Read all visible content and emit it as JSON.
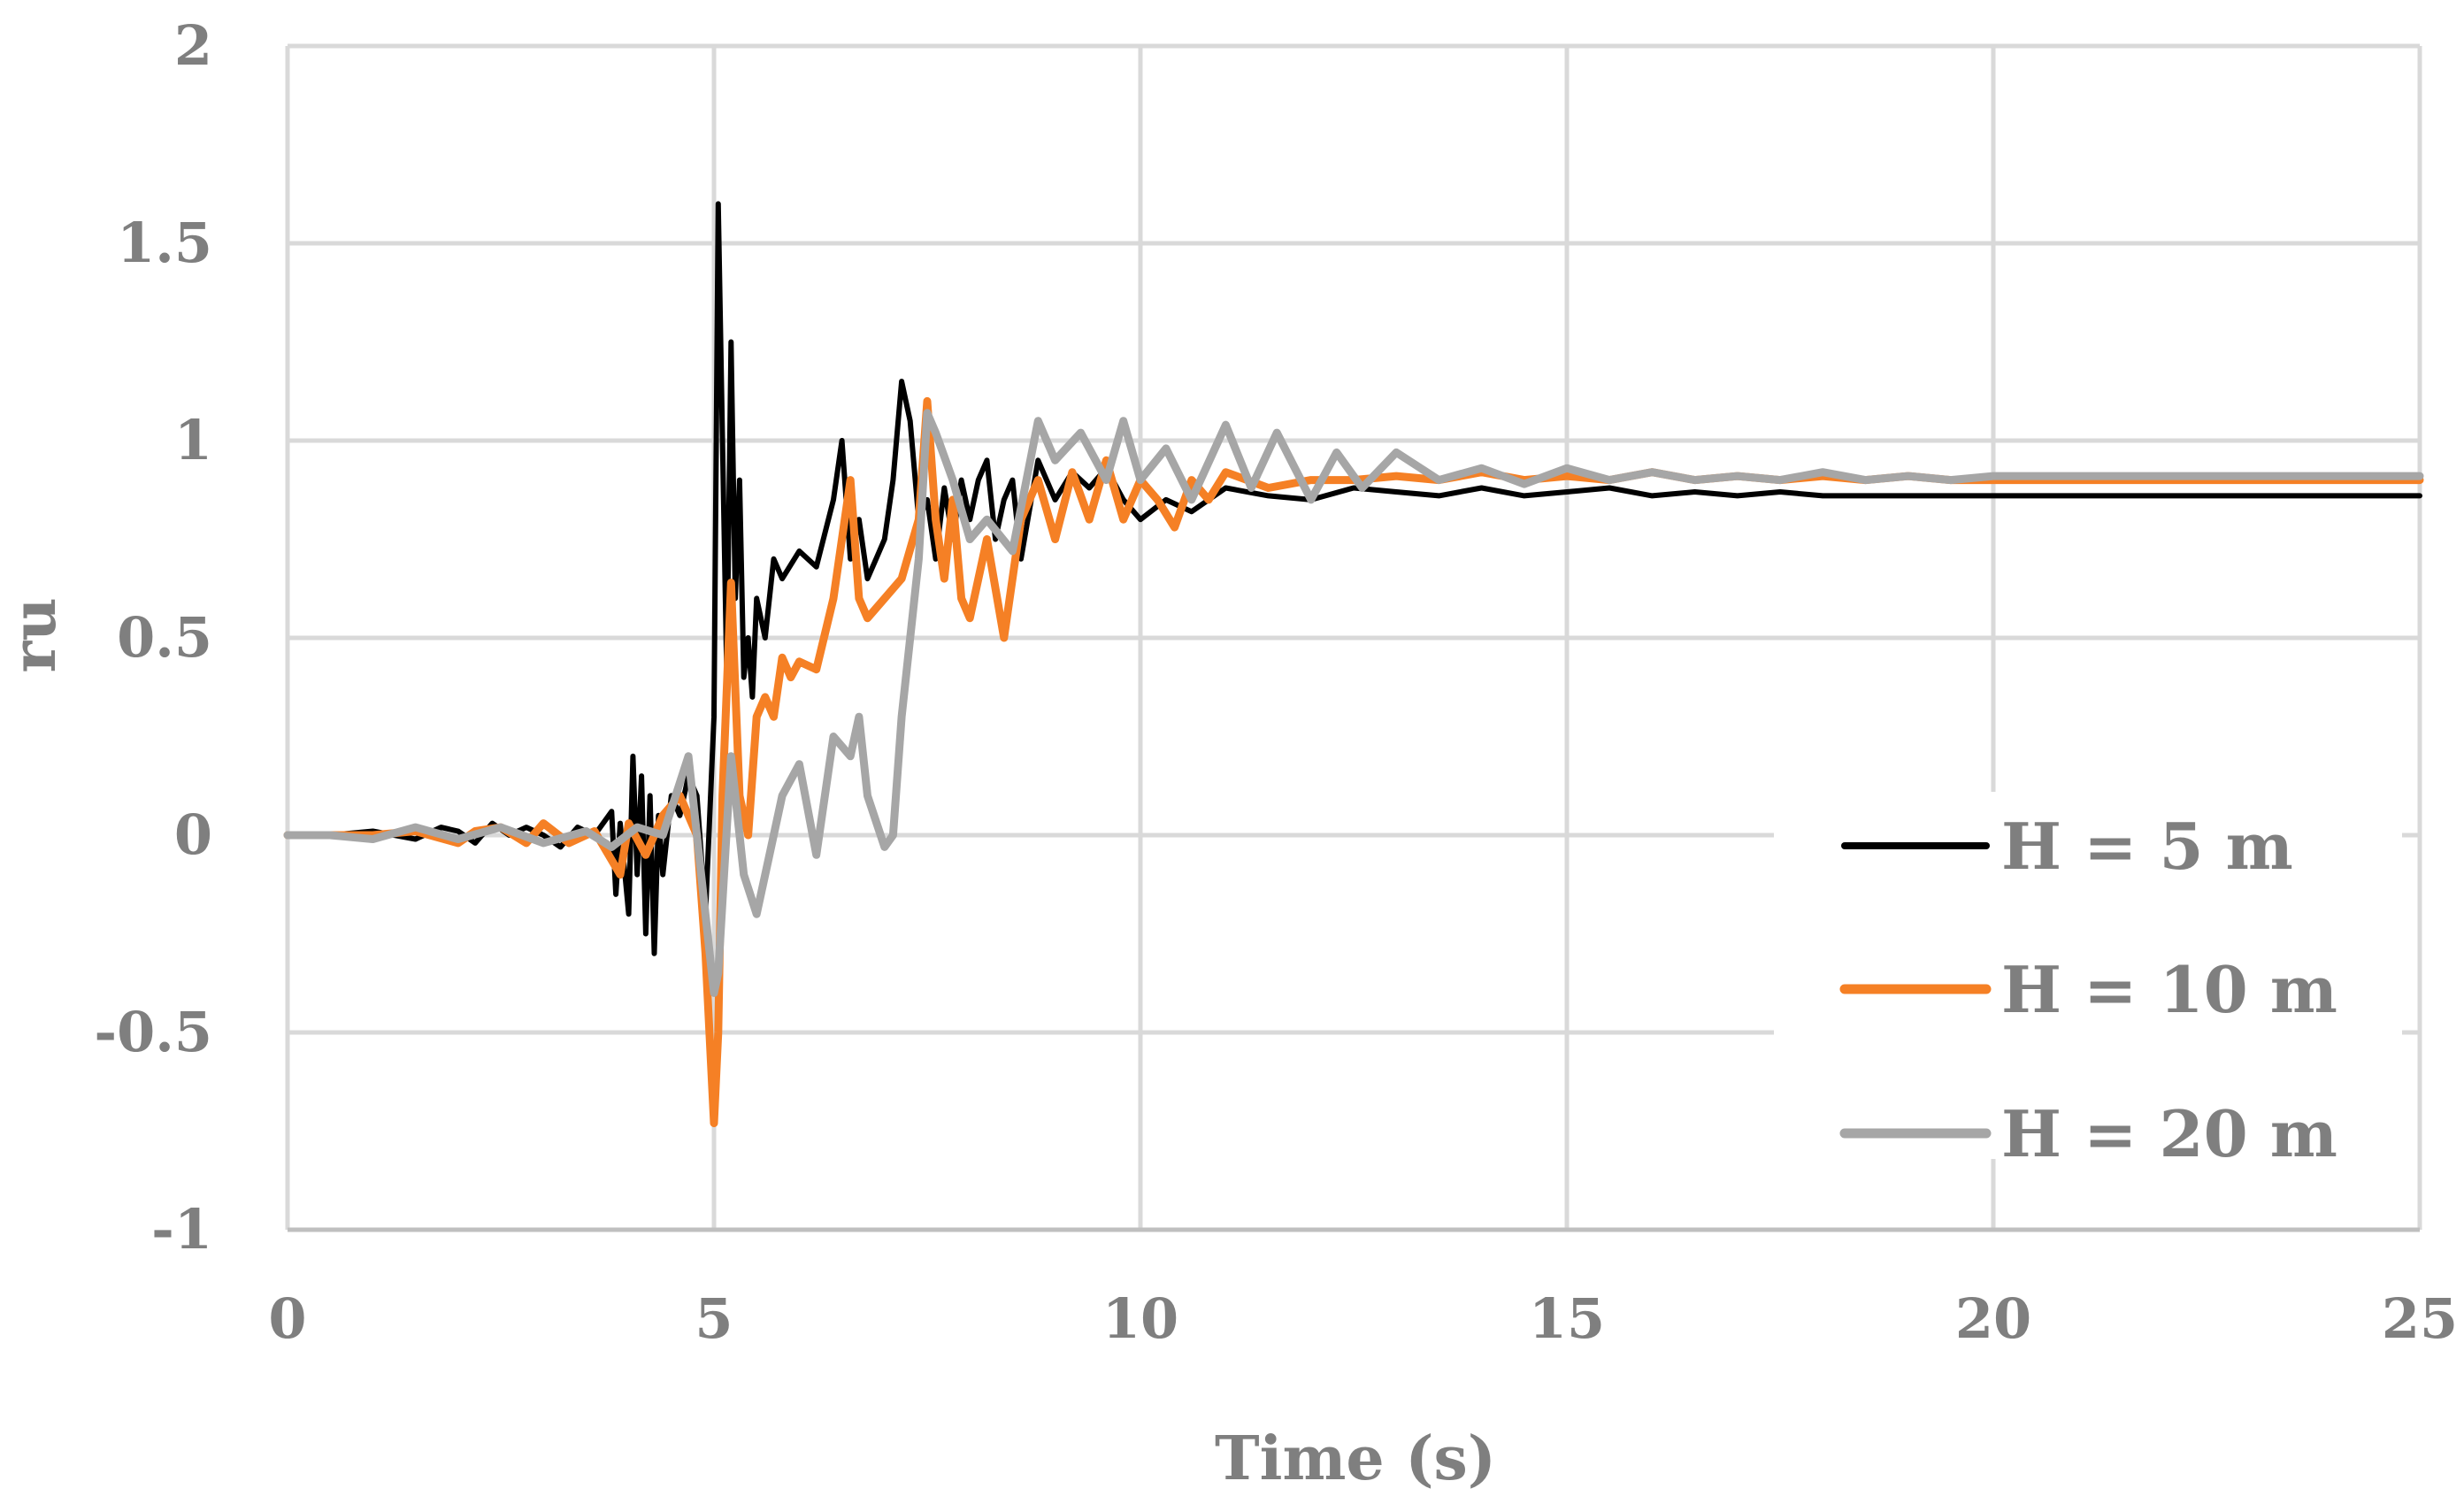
{
  "chart_data": {
    "type": "line",
    "title": "",
    "xlabel": "Time (s)",
    "ylabel": "ru",
    "xlim": [
      0,
      25
    ],
    "ylim": [
      -1,
      2
    ],
    "xticks": [
      0,
      5,
      10,
      15,
      20,
      25
    ],
    "yticks": [
      -1,
      -0.5,
      0,
      0.5,
      1,
      1.5,
      2
    ],
    "xtick_labels": [
      "0",
      "5",
      "10",
      "15",
      "20",
      "25"
    ],
    "ytick_labels": [
      "-1",
      "-0.5",
      "0",
      "0.5",
      "1",
      "1.5",
      "2"
    ],
    "grid": true,
    "legend": "bottom-right",
    "series": [
      {
        "name": "H = 5 m",
        "color": "#000000",
        "x": [
          0,
          0.5,
          1,
          1.5,
          1.8,
          2.0,
          2.2,
          2.4,
          2.6,
          2.8,
          3.0,
          3.2,
          3.4,
          3.6,
          3.8,
          3.85,
          3.9,
          4.0,
          4.05,
          4.1,
          4.15,
          4.2,
          4.25,
          4.3,
          4.35,
          4.4,
          4.5,
          4.6,
          4.7,
          4.8,
          4.9,
          5.0,
          5.05,
          5.1,
          5.15,
          5.2,
          5.25,
          5.3,
          5.35,
          5.4,
          5.45,
          5.5,
          5.6,
          5.7,
          5.8,
          6.0,
          6.2,
          6.4,
          6.5,
          6.6,
          6.7,
          6.8,
          6.9,
          7.0,
          7.1,
          7.2,
          7.3,
          7.4,
          7.5,
          7.6,
          7.7,
          7.8,
          7.9,
          8.0,
          8.1,
          8.2,
          8.3,
          8.4,
          8.5,
          8.6,
          8.8,
          9.0,
          9.2,
          9.4,
          9.6,
          9.8,
          10.0,
          10.3,
          10.6,
          11.0,
          11.5,
          12.0,
          12.5,
          13.0,
          13.5,
          14.0,
          14.5,
          15.0,
          15.5,
          16.0,
          16.5,
          17.0,
          17.5,
          18.0,
          18.5,
          19.0,
          19.5,
          20.0,
          22.0,
          25.0
        ],
        "y": [
          0,
          0,
          0.01,
          -0.01,
          0.02,
          0.01,
          -0.02,
          0.03,
          0.0,
          0.02,
          0.0,
          -0.03,
          0.02,
          0.0,
          0.06,
          -0.15,
          0.03,
          -0.2,
          0.2,
          -0.1,
          0.15,
          -0.25,
          0.1,
          -0.3,
          0.05,
          -0.1,
          0.1,
          0.05,
          0.15,
          0.1,
          -0.2,
          0.3,
          1.6,
          1.0,
          0.4,
          1.25,
          0.6,
          0.9,
          0.4,
          0.5,
          0.35,
          0.6,
          0.5,
          0.7,
          0.65,
          0.72,
          0.68,
          0.85,
          1.0,
          0.7,
          0.8,
          0.65,
          0.7,
          0.75,
          0.9,
          1.15,
          1.05,
          0.8,
          0.85,
          0.7,
          0.88,
          0.75,
          0.9,
          0.8,
          0.9,
          0.95,
          0.75,
          0.85,
          0.9,
          0.7,
          0.95,
          0.85,
          0.92,
          0.88,
          0.93,
          0.85,
          0.8,
          0.85,
          0.82,
          0.88,
          0.86,
          0.85,
          0.88,
          0.87,
          0.86,
          0.88,
          0.86,
          0.87,
          0.88,
          0.86,
          0.87,
          0.86,
          0.87,
          0.86,
          0.86,
          0.86,
          0.86,
          0.86,
          0.86,
          0.86
        ]
      },
      {
        "name": "H = 10 m",
        "color": "#f58025",
        "x": [
          0,
          0.5,
          1,
          1.5,
          2.0,
          2.2,
          2.5,
          2.8,
          3.0,
          3.3,
          3.6,
          3.9,
          4.0,
          4.2,
          4.4,
          4.6,
          4.8,
          4.9,
          5.0,
          5.05,
          5.1,
          5.2,
          5.3,
          5.4,
          5.5,
          5.6,
          5.7,
          5.8,
          5.9,
          6.0,
          6.2,
          6.4,
          6.6,
          6.7,
          6.8,
          7.0,
          7.2,
          7.4,
          7.5,
          7.6,
          7.7,
          7.8,
          7.9,
          8.0,
          8.2,
          8.4,
          8.6,
          8.8,
          9.0,
          9.2,
          9.4,
          9.6,
          9.8,
          10.0,
          10.2,
          10.4,
          10.6,
          10.8,
          11.0,
          11.5,
          12.0,
          12.5,
          13.0,
          13.5,
          14.0,
          14.5,
          15.0,
          15.5,
          16.0,
          16.5,
          17.0,
          17.5,
          18.0,
          18.5,
          19.0,
          19.5,
          20.0,
          22.0,
          25.0
        ],
        "y": [
          0,
          0,
          0,
          0.01,
          -0.02,
          0.01,
          0.02,
          -0.02,
          0.03,
          -0.02,
          0.01,
          -0.1,
          0.03,
          -0.05,
          0.05,
          0.1,
          0.0,
          -0.3,
          -0.73,
          -0.5,
          0.1,
          0.64,
          0.1,
          0.0,
          0.3,
          0.35,
          0.3,
          0.45,
          0.4,
          0.44,
          0.42,
          0.6,
          0.9,
          0.6,
          0.55,
          0.6,
          0.65,
          0.8,
          1.1,
          0.8,
          0.65,
          0.85,
          0.6,
          0.55,
          0.75,
          0.5,
          0.8,
          0.9,
          0.75,
          0.92,
          0.8,
          0.95,
          0.8,
          0.9,
          0.85,
          0.78,
          0.9,
          0.85,
          0.92,
          0.88,
          0.9,
          0.9,
          0.91,
          0.9,
          0.92,
          0.9,
          0.91,
          0.9,
          0.92,
          0.9,
          0.91,
          0.9,
          0.91,
          0.9,
          0.91,
          0.9,
          0.9,
          0.9,
          0.9
        ]
      },
      {
        "name": "H = 20 m",
        "color": "#a6a6a6",
        "x": [
          0,
          0.5,
          1,
          1.5,
          2.0,
          2.5,
          3.0,
          3.5,
          3.8,
          4.1,
          4.4,
          4.7,
          4.85,
          5.0,
          5.05,
          5.2,
          5.35,
          5.5,
          5.65,
          5.8,
          6.0,
          6.2,
          6.4,
          6.6,
          6.7,
          6.8,
          7.0,
          7.1,
          7.2,
          7.4,
          7.5,
          7.6,
          7.8,
          8.0,
          8.2,
          8.5,
          8.8,
          9.0,
          9.3,
          9.6,
          9.8,
          10.0,
          10.3,
          10.6,
          11.0,
          11.3,
          11.6,
          12.0,
          12.3,
          12.6,
          13.0,
          13.5,
          14.0,
          14.5,
          15.0,
          15.5,
          16.0,
          16.5,
          17.0,
          17.5,
          18.0,
          18.5,
          19.0,
          19.5,
          20.0,
          22.0,
          25.0
        ],
        "y": [
          0,
          0,
          -0.01,
          0.02,
          -0.01,
          0.02,
          -0.02,
          0.01,
          -0.03,
          0.02,
          0.0,
          0.2,
          -0.1,
          -0.4,
          -0.35,
          0.2,
          -0.1,
          -0.2,
          -0.05,
          0.1,
          0.18,
          -0.05,
          0.25,
          0.2,
          0.3,
          0.1,
          -0.03,
          0.0,
          0.3,
          0.7,
          1.07,
          1.02,
          0.9,
          0.75,
          0.8,
          0.72,
          1.05,
          0.95,
          1.02,
          0.9,
          1.05,
          0.9,
          0.98,
          0.85,
          1.04,
          0.88,
          1.02,
          0.85,
          0.97,
          0.88,
          0.97,
          0.9,
          0.93,
          0.89,
          0.93,
          0.9,
          0.92,
          0.9,
          0.91,
          0.9,
          0.92,
          0.9,
          0.91,
          0.9,
          0.91,
          0.91,
          0.91
        ]
      }
    ]
  }
}
